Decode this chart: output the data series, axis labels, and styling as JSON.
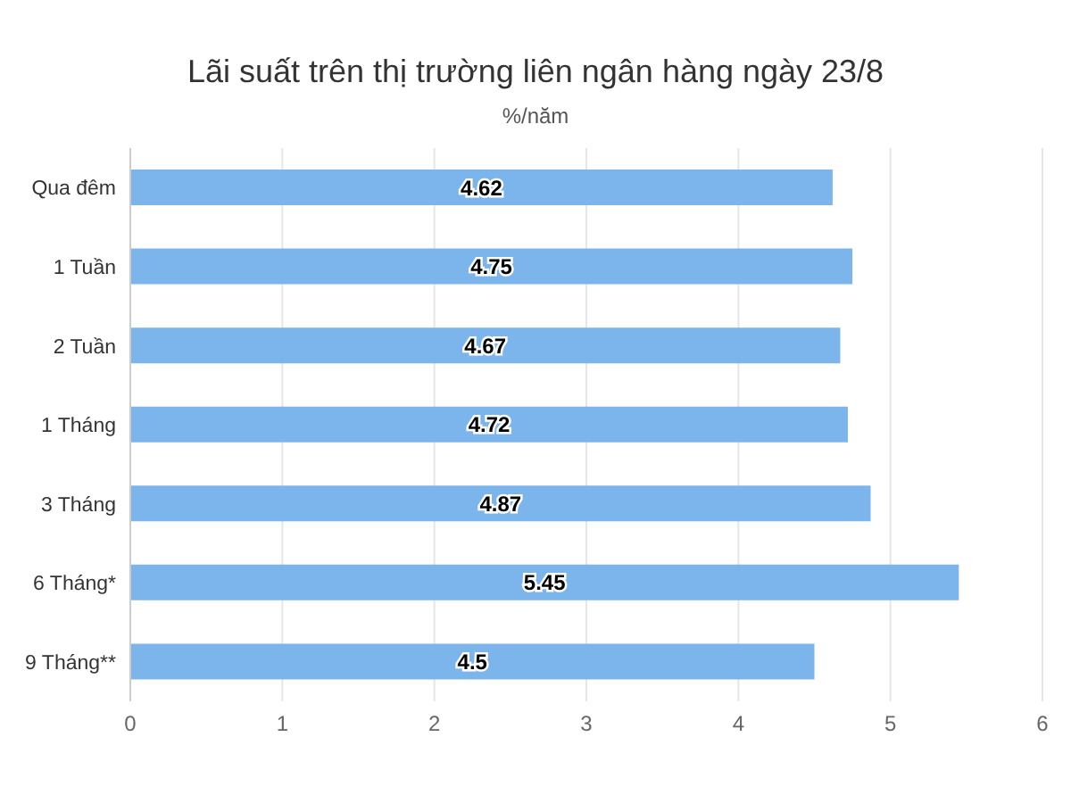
{
  "chart_data": {
    "type": "bar",
    "orientation": "horizontal",
    "title": "Lãi suất trên thị trường liên ngân hàng ngày 23/8",
    "subtitle": "%/năm",
    "categories": [
      "Qua đêm",
      "1 Tuần",
      "2 Tuần",
      "1 Tháng",
      "3 Tháng",
      "6 Tháng*",
      "9 Tháng**"
    ],
    "values": [
      4.62,
      4.75,
      4.67,
      4.72,
      4.87,
      5.45,
      4.5
    ],
    "color": "#7cb5ec",
    "xlim": [
      0,
      6
    ],
    "xticks": [
      0,
      1,
      2,
      3,
      4,
      5,
      6
    ],
    "grid": "x",
    "data_labels": true
  }
}
